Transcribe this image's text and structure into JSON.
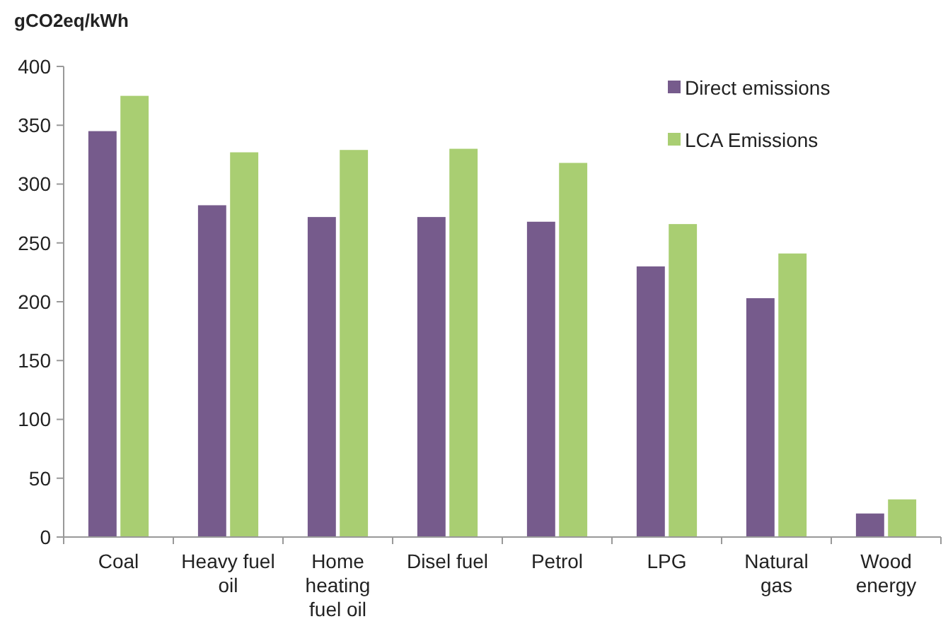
{
  "chart_data": {
    "type": "bar",
    "ylabel": "gCO2eq/kWh",
    "categories": [
      "Coal",
      "Heavy fuel oil",
      "Home heating fuel oil",
      "Disel fuel",
      "Petrol",
      "LPG",
      "Natural gas",
      "Wood energy"
    ],
    "series": [
      {
        "name": "Direct emissions",
        "color": "#765b8c",
        "values": [
          345,
          282,
          272,
          272,
          268,
          230,
          203,
          20
        ]
      },
      {
        "name": "LCA Emissions",
        "color": "#a9ce72",
        "values": [
          375,
          327,
          329,
          330,
          318,
          266,
          241,
          32
        ]
      }
    ],
    "ylim": [
      0,
      400
    ],
    "yticks": [
      0,
      50,
      100,
      150,
      200,
      250,
      300,
      350,
      400
    ],
    "grid": false,
    "legend": "top right"
  }
}
